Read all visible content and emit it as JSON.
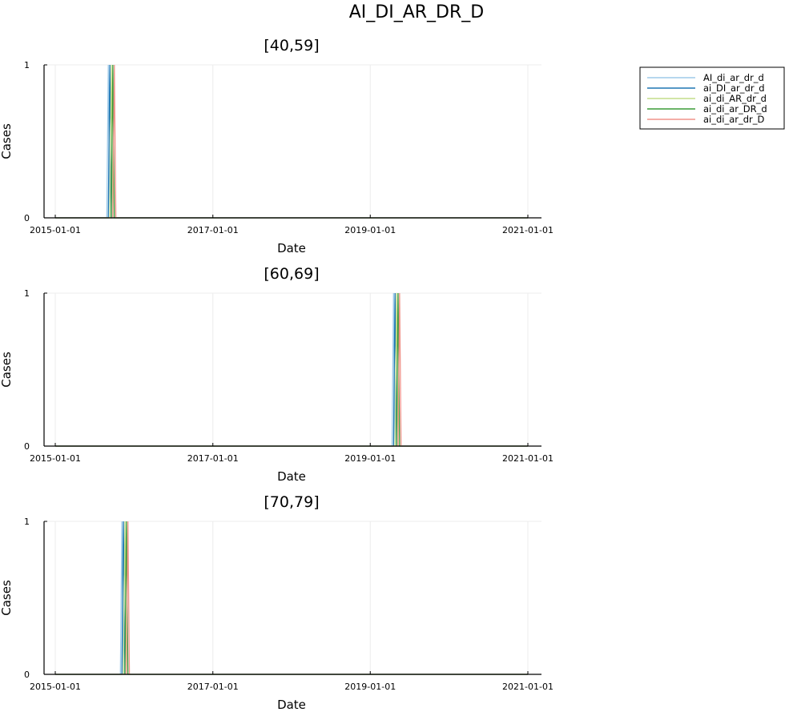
{
  "chart_data": {
    "type": "line",
    "title": "AI_DI_AR_DR_D",
    "legend": {
      "placement": "outer-top-right",
      "entries": [
        "AI_di_ar_dr_d",
        "ai_DI_ar_dr_d",
        "ai_di_AR_dr_d",
        "ai_di_ar_DR_d",
        "ai_di_ar_dr_D"
      ]
    },
    "series_colors": [
      "#9ecae9",
      "#1f77b4",
      "#c4dd8a",
      "#3a9b37",
      "#f0938a"
    ],
    "x_ticks": [
      "2015-01-01",
      "2017-01-01",
      "2019-01-01",
      "2021-01-01"
    ],
    "xlim": [
      "2015-01-01",
      "2021-01-01"
    ],
    "y_ticks": [
      "0",
      "1"
    ],
    "ylim": [
      0,
      1
    ],
    "grid": true,
    "panels": [
      {
        "title": "[40,59]",
        "xlabel": "Date",
        "ylabel": "Cases",
        "spike_dates": [
          "2015-09-04",
          "2015-09-11",
          "2015-09-18",
          "2015-09-25",
          "2015-10-02"
        ]
      },
      {
        "title": "[60,69]",
        "xlabel": "Date",
        "ylabel": "Cases",
        "spike_dates": [
          "2019-04-19",
          "2019-04-26",
          "2019-05-03",
          "2019-05-10",
          "2019-05-17"
        ]
      },
      {
        "title": "[70,79]",
        "xlabel": "Date",
        "ylabel": "Cases",
        "spike_dates": [
          "2015-11-06",
          "2015-11-13",
          "2015-11-20",
          "2015-11-27",
          "2015-12-04"
        ]
      }
    ]
  }
}
